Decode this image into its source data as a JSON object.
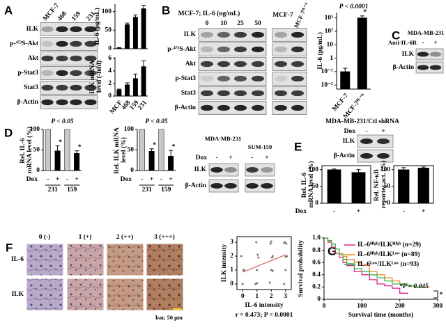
{
  "panels": {
    "A": {
      "label": "A",
      "lanes": [
        "MCF-7",
        "468",
        "159",
        "231"
      ],
      "rows": [
        "ILK",
        "p-⁴⁷³S-Akt",
        "Akt",
        "p-Stat3",
        "Stat3",
        "β-Actin"
      ]
    },
    "B": {
      "label": "B",
      "title": "MCF-7; IL-6 (ng/mL)",
      "lanes": [
        "0",
        "10",
        "25",
        "50"
      ],
      "extra_lanes": [
        "MCF-7",
        "MCF-7ᴵᴸ⁻⁶"
      ],
      "rows": [
        "ILK",
        "p-⁴⁷³S-Akt",
        "Akt",
        "p-Stat3",
        "Stat3",
        "β-Actin"
      ]
    },
    "C": {
      "label": "C",
      "cell_line": "MDA-MB-231",
      "treatment": "Anti-IL-6R",
      "lanes": [
        "-",
        "+"
      ],
      "rows": [
        "ILK",
        "β-Actin"
      ]
    },
    "D": {
      "label": "D",
      "cell_lines": [
        "MDA-MB-231",
        "SUM-159"
      ],
      "treatment": "Dox",
      "lanes": [
        "-",
        "+",
        "-",
        "+"
      ],
      "rows": [
        "ILK",
        "β-Actin"
      ]
    },
    "E": {
      "label": "E",
      "title": "MDA-MB-231/Ctl shRNA",
      "treatment": "Dox",
      "lanes": [
        "-",
        "+"
      ],
      "rows": [
        "ILK",
        "β-Actin"
      ]
    },
    "F": {
      "label": "F",
      "columns": [
        "0 (-)",
        "1 (+)",
        "2 (++)",
        "3 (+++)"
      ],
      "rows": [
        "IL-6",
        "ILK"
      ],
      "scale": "bar, 50 μm"
    },
    "G": {
      "label": "G"
    }
  },
  "chart_data": [
    {
      "type": "bar",
      "ylabel": "IL-6 (pg/mL)",
      "values": [
        2,
        65,
        85,
        108
      ],
      "errors": [
        1,
        4,
        6,
        9
      ],
      "color": "#000000",
      "ylim": [
        0,
        120
      ],
      "yticks": [
        0,
        50,
        100
      ]
    },
    {
      "type": "bar",
      "ylabel": "ILK mRNA level (-fold)",
      "categories": [
        "MCF",
        "468",
        "159",
        "231"
      ],
      "values": [
        1,
        1.8,
        2.8,
        4.7
      ],
      "errors": [
        0.1,
        0.3,
        0.7,
        0.9
      ],
      "color": "#000000",
      "ylim": [
        0,
        6.2
      ],
      "yticks": [
        0,
        2,
        4,
        6
      ]
    },
    {
      "type": "bar",
      "annotation": "P < 0.0001",
      "ylabel": "IL-6 (pg/mL)",
      "categories": [
        "MCF-7",
        "MCF-7ᴵᴸ⁻⁶"
      ],
      "values": [
        0.1,
        1000
      ],
      "errors": [
        0.08,
        400
      ],
      "stars": [
        null,
        "*"
      ],
      "color": "#000000",
      "log": true,
      "ylim": [
        0.005,
        2500
      ],
      "yticks": [
        {
          "value": 1000,
          "label": "10³"
        },
        {
          "value": 100,
          "label": "10²"
        },
        10,
        1,
        {
          "value": 0.1,
          "label": "10⁻¹"
        },
        {
          "value": 0.01,
          "label": "10⁻²"
        }
      ]
    },
    {
      "type": "bar",
      "annotation": "P < 0.05",
      "ylabel": "Rel. IL-6 mRNA level (%)",
      "xlabel": "Dox",
      "categories": [
        "-",
        "+",
        "-",
        "+"
      ],
      "groups": [
        "231",
        "159"
      ],
      "values": [
        100,
        48,
        100,
        42
      ],
      "errors": [
        null,
        12,
        null,
        6
      ],
      "stars": [
        null,
        "*",
        null,
        "*"
      ],
      "colors": [
        "#c8c8c8",
        "#000000",
        "#c8c8c8",
        "#000000"
      ],
      "ylim": [
        0,
        100
      ],
      "yticks": [
        0,
        50,
        100
      ]
    },
    {
      "type": "bar",
      "annotation": "P < 0.05",
      "ylabel": "Rel. ILK mRNA level (%)",
      "xlabel": "Dox",
      "categories": [
        "-",
        "+",
        "-",
        "+"
      ],
      "groups": [
        "231",
        "159"
      ],
      "values": [
        100,
        47,
        100,
        35
      ],
      "errors": [
        null,
        6,
        null,
        14
      ],
      "stars": [
        null,
        "*",
        null,
        "*"
      ],
      "colors": [
        "#c8c8c8",
        "#000000",
        "#c8c8c8",
        "#000000"
      ],
      "ylim": [
        0,
        100
      ],
      "yticks": [
        0,
        50,
        100
      ]
    },
    {
      "type": "bar",
      "ylabel": "Rel. IL-6 mRNA level (%)",
      "xlabel": "Dox",
      "categories": [
        "-",
        "+"
      ],
      "values": [
        100,
        92
      ],
      "errors": [
        2,
        8
      ],
      "color": "#000000",
      "ylim": [
        0,
        112
      ],
      "yticks": [
        0,
        50,
        100
      ]
    },
    {
      "type": "bar",
      "ylabel": "Rel. NF-κB reporter act. (%)",
      "categories": [
        "-",
        "+"
      ],
      "values": [
        100,
        105
      ],
      "errors": [
        6,
        3
      ],
      "color": "#000000",
      "ylim": [
        0,
        112
      ],
      "yticks": [
        0,
        50,
        100
      ]
    },
    {
      "type": "scatter",
      "ylabel": "ILK intensity",
      "xlabel": "IL-6 intensity",
      "note": "r = 0.473; P < 0.0001",
      "x": [
        0,
        0.1,
        -0.1,
        0.9,
        1,
        1.1,
        0.95,
        1.9,
        2,
        2.1,
        1.95,
        2.05,
        2.9,
        3,
        3.1,
        2.95,
        3.05,
        0.05,
        1.05,
        2,
        3,
        1,
        2.1,
        2.9
      ],
      "y": [
        0,
        1,
        2,
        0,
        1,
        1.9,
        3,
        0.1,
        1,
        2,
        2.9,
        1.9,
        0,
        1,
        2,
        3,
        2.9,
        1,
        2.1,
        3.05,
        1.95,
        0.05,
        0.95,
        2.95
      ],
      "color": "#777777",
      "trend": {
        "x": [
          0,
          3
        ],
        "y": [
          0.85,
          2.1
        ],
        "color": "#e06666"
      },
      "xlim": [
        -0.4,
        3.4
      ],
      "ylim": [
        -0.4,
        3.4
      ],
      "xticks": [
        0,
        1,
        2,
        3
      ],
      "yticks": [
        0,
        1,
        2,
        3
      ]
    },
    {
      "type": "line",
      "step": true,
      "ylabel": "Survival probability",
      "xlabel": "Survival time (months)",
      "annotation": "*P = 0.045",
      "star": "*",
      "x": [
        0,
        10,
        20,
        30,
        40,
        50,
        60,
        80,
        100,
        120,
        140,
        160,
        180,
        200,
        220,
        240,
        260,
        280
      ],
      "series": [
        {
          "name": "IL-6ᴴⁱᵍʰ/ILKᴴⁱᵍʰ (n=29)",
          "color": "#e0218a",
          "values": [
            1,
            0.93,
            0.85,
            0.75,
            0.68,
            0.6,
            0.55,
            0.45,
            0.4,
            0.32,
            0.25,
            0.22,
            0.18,
            0.1,
            0.08,
            null,
            null,
            null
          ]
        },
        {
          "name": "IL-6ᴴⁱᵍʰ/ILKᴸᵒʷ (n=89)",
          "color": "#f28c28",
          "values": [
            1,
            0.95,
            0.9,
            0.82,
            0.75,
            0.7,
            0.65,
            0.6,
            0.55,
            0.45,
            0.4,
            0.35,
            0.3,
            0.25,
            0.22,
            0.2,
            0.2,
            0.2
          ]
        },
        {
          "name": "IL-6ᴸᵒʷ/ILKᴸᵒʷ (n=93)",
          "color": "#3cb44b",
          "values": [
            1,
            0.96,
            0.9,
            0.82,
            0.73,
            0.65,
            0.58,
            0.5,
            0.45,
            0.4,
            0.35,
            0.3,
            0.25,
            0.25,
            0.22,
            0.2,
            0.18,
            null
          ]
        }
      ],
      "xlim": [
        0,
        300
      ],
      "ylim": [
        0,
        1
      ],
      "xticks": [
        0,
        100,
        200,
        300
      ],
      "yticks": [
        0,
        0.2,
        0.4,
        0.6,
        0.8,
        {
          "value": 1,
          "label": "1.0"
        }
      ]
    }
  ]
}
